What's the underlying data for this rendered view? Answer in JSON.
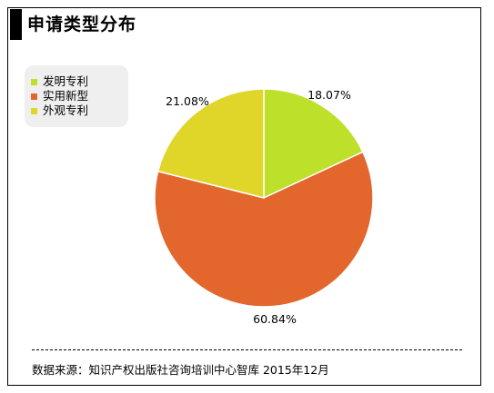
{
  "title": "申请类型分布",
  "source": "数据来源：知识产权出版社咨询培训中心智库 2015年12月",
  "chart_data": {
    "type": "pie",
    "start_angle_deg": 0,
    "direction": "clockwise",
    "slices": [
      {
        "label": "发明专利",
        "value": 18.07,
        "display": "18.07%",
        "color": "#bde02a"
      },
      {
        "label": "实用新型",
        "value": 60.84,
        "display": "60.84%",
        "color": "#e3662c"
      },
      {
        "label": "外观专利",
        "value": 21.08,
        "display": "21.08%",
        "color": "#e0d529"
      }
    ],
    "legend_position": "left"
  }
}
